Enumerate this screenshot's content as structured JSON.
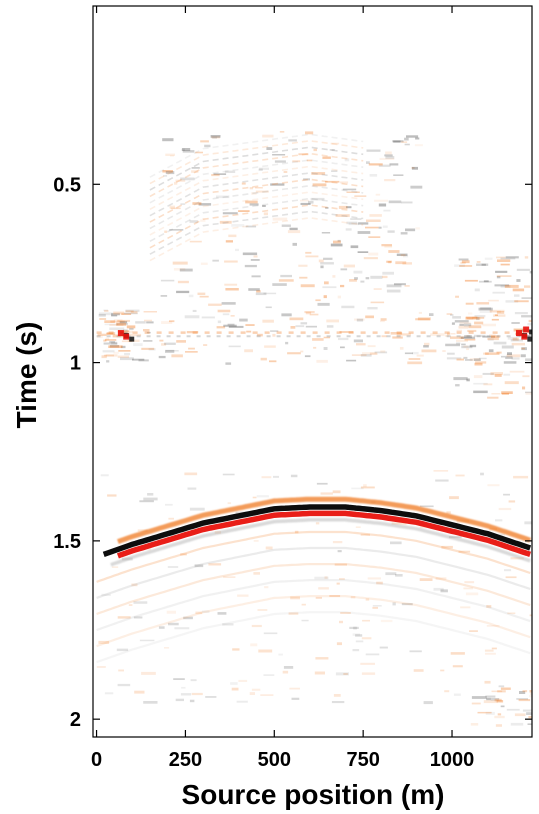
{
  "chart_data": {
    "type": "heatmap",
    "title": "",
    "xlabel": "Source position (m)",
    "ylabel": "Time (s)",
    "xlim": [
      -10,
      1225
    ],
    "ylim": [
      0.0,
      2.05
    ],
    "y_inverted": true,
    "grid": false,
    "legend": "none",
    "x_ticks": [
      0,
      250,
      500,
      750,
      1000
    ],
    "x_tick_labels": [
      "0",
      "250",
      "500",
      "750",
      "1000"
    ],
    "y_ticks": [
      0.5,
      1,
      1.5,
      2
    ],
    "y_tick_labels": [
      "0.5",
      "1",
      "1.5",
      "2"
    ],
    "colormap": {
      "negative": "#000000",
      "zero": "#ffffff",
      "positive": "#e8120c",
      "mid_positive": "#f07a22"
    },
    "events": [
      {
        "name": "main reflection",
        "x": [
          0,
          100,
          200,
          300,
          400,
          500,
          600,
          700,
          800,
          900,
          1000,
          1100,
          1220
        ],
        "t": [
          1.545,
          1.51,
          1.48,
          1.45,
          1.43,
          1.41,
          1.405,
          1.405,
          1.415,
          1.43,
          1.455,
          1.48,
          1.52
        ]
      },
      {
        "name": "flat event",
        "x": [
          0,
          1220
        ],
        "t": [
          0.92,
          0.92
        ]
      },
      {
        "name": "shallow diffuse event",
        "x": [
          150,
          300,
          450,
          600,
          750
        ],
        "t": [
          0.6,
          0.52,
          0.5,
          0.48,
          0.5
        ]
      }
    ]
  }
}
